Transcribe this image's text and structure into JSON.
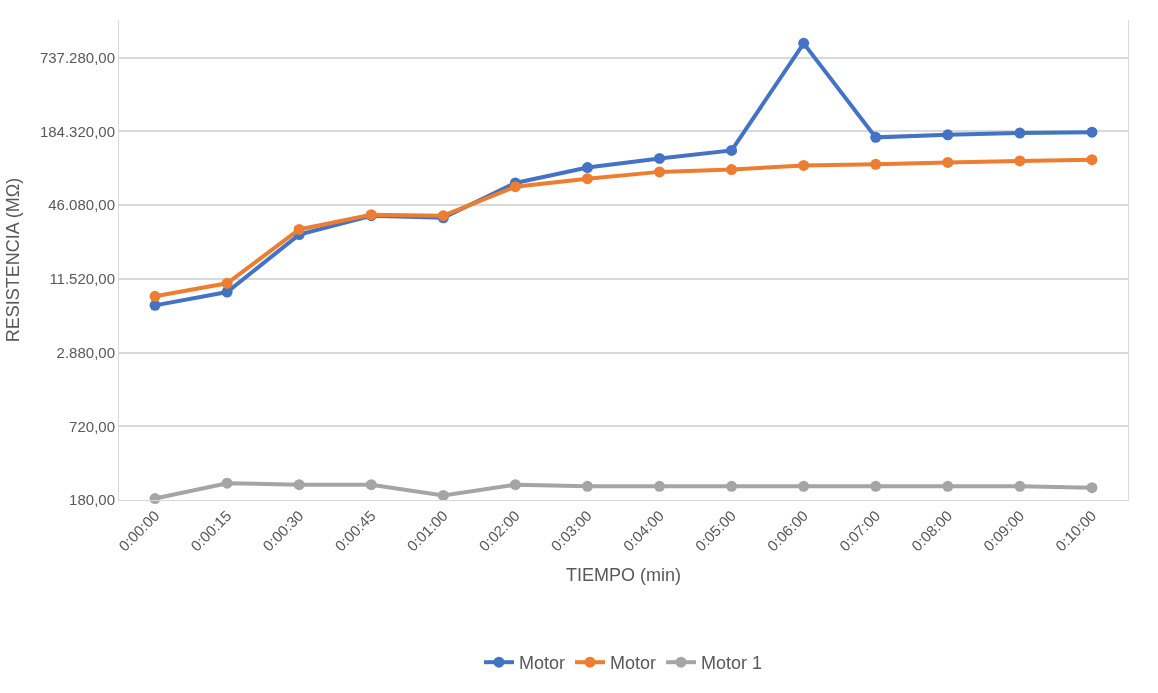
{
  "chart_data": {
    "type": "line",
    "xlabel": "TIEMPO (min)",
    "ylabel": "RESISTENCIA (MΩ)",
    "categories": [
      "0:00:00",
      "0:00:15",
      "0:00:30",
      "0:00:45",
      "0:01:00",
      "0:02:00",
      "0:03:00",
      "0:04:00",
      "0:05:00",
      "0:06:00",
      "0:07:00",
      "0:08:00",
      "0:09:00",
      "0:10:00"
    ],
    "series": [
      {
        "name": "Motor",
        "color": "#4472c4",
        "values": [
          7000,
          9000,
          26500,
          37800,
          36300,
          70000,
          93500,
          111000,
          129000,
          967000,
          165000,
          173000,
          179000,
          182000
        ]
      },
      {
        "name": "Motor",
        "color": "#ed7d31",
        "values": [
          8300,
          10600,
          29200,
          38500,
          37800,
          65200,
          75800,
          86200,
          90000,
          97300,
          99400,
          103000,
          106000,
          108500
        ]
      },
      {
        "name": "Motor 1",
        "color": "#a5a5a5",
        "values": [
          185,
          247,
          240,
          240,
          196,
          240,
          233,
          233,
          233,
          233,
          233,
          233,
          233,
          227
        ]
      }
    ],
    "log": "y",
    "ylim": [
      180,
      1500000
    ],
    "yticks": [
      {
        "value": 180,
        "label": "180,00"
      },
      {
        "value": 720,
        "label": "720,00"
      },
      {
        "value": 2880,
        "label": "2.880,00"
      },
      {
        "value": 11520,
        "label": "11.520,00"
      },
      {
        "value": 46080,
        "label": "46.080,00"
      },
      {
        "value": 184320,
        "label": "184.320,00"
      },
      {
        "value": 737280,
        "label": "737.280,00"
      }
    ],
    "grid": "y",
    "legend": "bottom",
    "marker": "circle",
    "line_style": "solid"
  }
}
